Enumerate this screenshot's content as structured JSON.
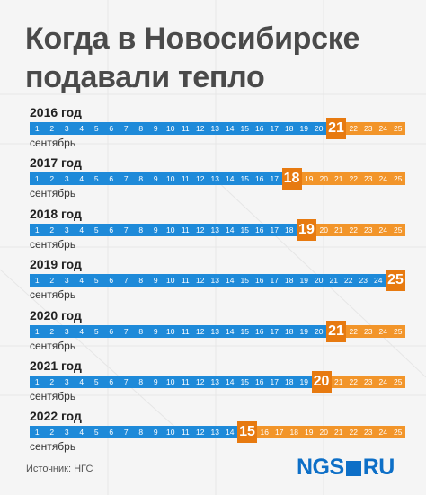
{
  "title_line1": "Когда в Новосибирске",
  "title_line2": "подавали тепло",
  "source": "Источник: НГС",
  "logo": {
    "left": "NGS",
    "right": "RU"
  },
  "colors": {
    "before": "#1e8ad9",
    "after": "#f2952a",
    "highlight": "#e77a10",
    "title": "#4a4a4a"
  },
  "chart_data": {
    "type": "table",
    "days": [
      1,
      2,
      3,
      4,
      5,
      6,
      7,
      8,
      9,
      10,
      11,
      12,
      13,
      14,
      15,
      16,
      17,
      18,
      19,
      20,
      21,
      22,
      23,
      24,
      25
    ],
    "month_label": "сентябрь",
    "rows": [
      {
        "year": "2016 год",
        "start_day": 21
      },
      {
        "year": "2017 год",
        "start_day": 18
      },
      {
        "year": "2018 год",
        "start_day": 19
      },
      {
        "year": "2019 год",
        "start_day": 25
      },
      {
        "year": "2020 год",
        "start_day": 21
      },
      {
        "year": "2021 год",
        "start_day": 20
      },
      {
        "year": "2022 год",
        "start_day": 15
      }
    ]
  }
}
